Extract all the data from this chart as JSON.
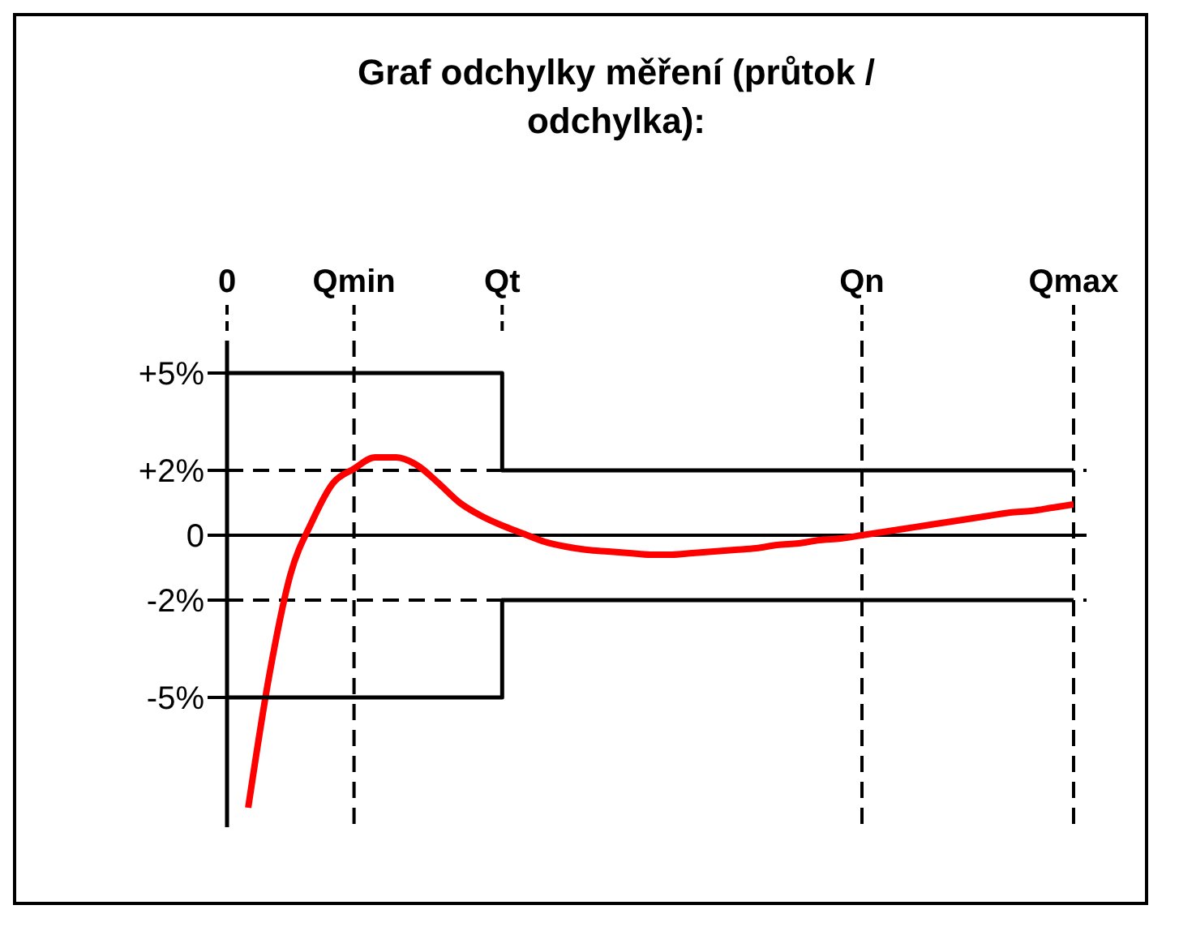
{
  "chart_data": {
    "type": "line",
    "title": "Graf odchylky měření (průtok / odchylka):",
    "categories": [
      "0",
      null,
      null,
      null,
      null,
      null,
      "Qmin",
      null,
      null,
      null,
      null,
      null,
      null,
      "Qt",
      null,
      null,
      null,
      null,
      null,
      null,
      null,
      null,
      null,
      null,
      null,
      null,
      null,
      null,
      null,
      null,
      "Qn",
      null,
      null,
      null,
      null,
      null,
      null,
      null,
      null,
      null,
      "Qmax"
    ],
    "ylim": [
      -9,
      6
    ],
    "yticks": [
      {
        "value": 5,
        "label": "+5%"
      },
      {
        "value": 2,
        "label": "+2%"
      },
      0,
      {
        "value": -2,
        "label": "-2%"
      },
      {
        "value": -5,
        "label": "-5%"
      }
    ],
    "series": [
      {
        "color": "#ff0000",
        "values": [
          null,
          -8.4,
          -4.3,
          -1.2,
          0.4,
          1.6,
          2.05,
          2.4,
          2.4,
          2.15,
          1.6,
          1.0,
          0.6,
          0.3,
          0.05,
          -0.2,
          -0.35,
          -0.45,
          -0.5,
          -0.55,
          -0.6,
          -0.6,
          -0.55,
          -0.5,
          -0.45,
          -0.4,
          -0.3,
          -0.25,
          -0.15,
          -0.1,
          0,
          0.1,
          0.2,
          0.3,
          0.4,
          0.5,
          0.6,
          0.7,
          0.75,
          0.85,
          0.95
        ]
      },
      {
        "type": "step",
        "color": "#000000",
        "values": [
          5,
          5,
          5,
          5,
          5,
          5,
          5,
          5,
          5,
          5,
          5,
          5,
          5,
          2,
          2,
          2,
          2,
          2,
          2,
          2,
          2,
          2,
          2,
          2,
          2,
          2,
          2,
          2,
          2,
          2,
          2,
          2,
          2,
          2,
          2,
          2,
          2,
          2,
          2,
          2,
          2
        ]
      },
      {
        "type": "step",
        "color": "#000000",
        "values": [
          -5,
          -5,
          -5,
          -5,
          -5,
          -5,
          -5,
          -5,
          -5,
          -5,
          -5,
          -5,
          -5,
          -2,
          -2,
          -2,
          -2,
          -2,
          -2,
          -2,
          -2,
          -2,
          -2,
          -2,
          -2,
          -2,
          -2,
          -2,
          -2,
          -2,
          -2,
          -2,
          -2,
          -2,
          -2,
          -2,
          -2,
          -2,
          -2,
          -2,
          -2
        ]
      }
    ],
    "ref_lines": [
      {
        "axis": "y",
        "value": 0,
        "line_style": "solid",
        "color": "#000000"
      },
      {
        "axis": "y",
        "value": 2,
        "line_style": "dashed",
        "color": "#000000"
      },
      {
        "axis": "y",
        "value": -2,
        "line_style": "dashed",
        "color": "#000000"
      },
      {
        "axis": "x",
        "value": "Qmin",
        "line_style": "dashed",
        "color": "#000000"
      },
      {
        "axis": "x",
        "value": "Qn",
        "line_style": "dashed",
        "color": "#000000"
      },
      {
        "axis": "x",
        "value": "Qmax",
        "line_style": "dashed",
        "color": "#000000"
      }
    ],
    "marker": "none",
    "line_style": "solid",
    "grid": false
  }
}
